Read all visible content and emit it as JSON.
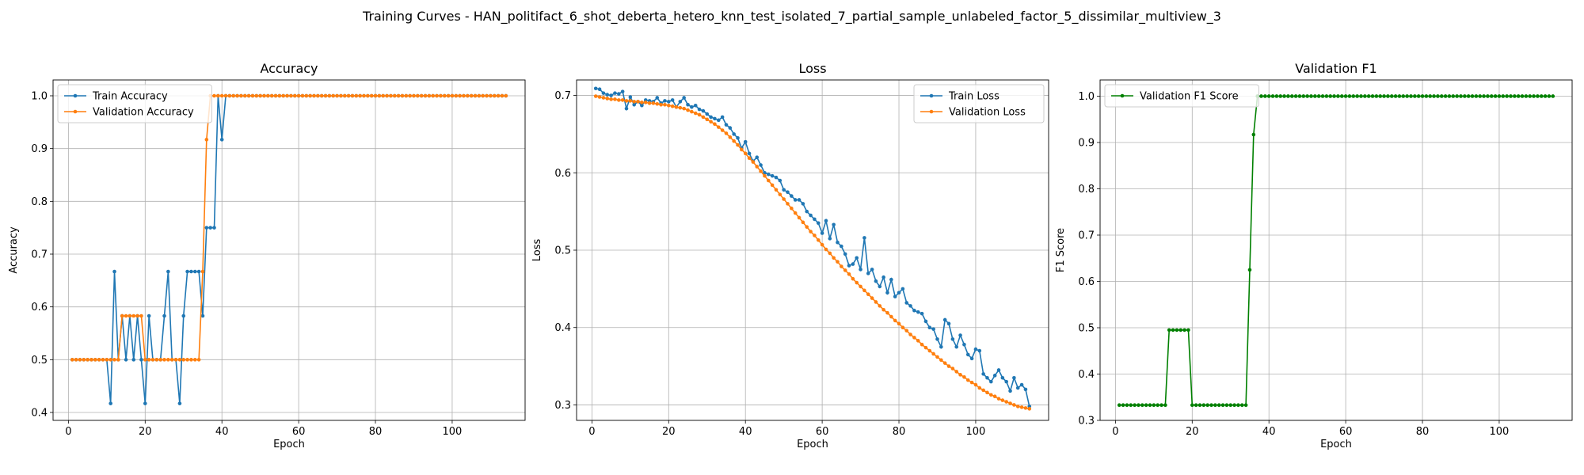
{
  "suptitle": "Training Curves - HAN_politifact_6_shot_deberta_hetero_knn_test_isolated_7_partial_sample_unlabeled_factor_5_dissimilar_multiview_3",
  "colors": {
    "train": "#1f77b4",
    "validation": "#ff7f0e",
    "f1": "#008000",
    "grid": "#b0b0b0"
  },
  "chart_data": [
    {
      "type": "line",
      "title": "Accuracy",
      "xlabel": "Epoch",
      "ylabel": "Accuracy",
      "xlim": [
        -4,
        119
      ],
      "ylim": [
        0.385,
        1.03
      ],
      "xticks": [
        0,
        20,
        40,
        60,
        80,
        100
      ],
      "yticks": [
        0.4,
        0.5,
        0.6,
        0.7,
        0.8,
        0.9,
        1.0
      ],
      "ytick_labels": [
        "0.4",
        "0.5",
        "0.6",
        "0.7",
        "0.8",
        "0.9",
        "1.0"
      ],
      "grid": true,
      "legend_position": "upper-left",
      "series": [
        {
          "name": "Train Accuracy",
          "color": "#1f77b4",
          "x_start": 1,
          "values": [
            0.5,
            0.5,
            0.5,
            0.5,
            0.5,
            0.5,
            0.5,
            0.5,
            0.5,
            0.5,
            0.417,
            0.667,
            0.5,
            0.583,
            0.5,
            0.583,
            0.5,
            0.583,
            0.5,
            0.417,
            0.583,
            0.5,
            0.5,
            0.5,
            0.583,
            0.667,
            0.5,
            0.5,
            0.417,
            0.583,
            0.667,
            0.667,
            0.667,
            0.667,
            0.583,
            0.75,
            0.75,
            0.75,
            1.0,
            0.917,
            1.0,
            1.0,
            1.0,
            1.0,
            1.0,
            1.0,
            1.0,
            1.0,
            1.0,
            1.0,
            1.0,
            1.0,
            1.0,
            1.0,
            1.0,
            1.0,
            1.0,
            1.0,
            1.0,
            1.0,
            1.0,
            1.0,
            1.0,
            1.0,
            1.0,
            1.0,
            1.0,
            1.0,
            1.0,
            1.0,
            1.0,
            1.0,
            1.0,
            1.0,
            1.0,
            1.0,
            1.0,
            1.0,
            1.0,
            1.0,
            1.0,
            1.0,
            1.0,
            1.0,
            1.0,
            1.0,
            1.0,
            1.0,
            1.0,
            1.0,
            1.0,
            1.0,
            1.0,
            1.0,
            1.0,
            1.0,
            1.0,
            1.0,
            1.0,
            1.0,
            1.0,
            1.0,
            1.0,
            1.0,
            1.0,
            1.0,
            1.0,
            1.0,
            1.0,
            1.0,
            1.0,
            1.0,
            1.0,
            1.0
          ]
        },
        {
          "name": "Validation Accuracy",
          "color": "#ff7f0e",
          "x_start": 1,
          "values": [
            0.5,
            0.5,
            0.5,
            0.5,
            0.5,
            0.5,
            0.5,
            0.5,
            0.5,
            0.5,
            0.5,
            0.5,
            0.5,
            0.583,
            0.583,
            0.583,
            0.583,
            0.583,
            0.583,
            0.5,
            0.5,
            0.5,
            0.5,
            0.5,
            0.5,
            0.5,
            0.5,
            0.5,
            0.5,
            0.5,
            0.5,
            0.5,
            0.5,
            0.5,
            0.667,
            0.917,
            1.0,
            1.0,
            1.0,
            1.0,
            1.0,
            1.0,
            1.0,
            1.0,
            1.0,
            1.0,
            1.0,
            1.0,
            1.0,
            1.0,
            1.0,
            1.0,
            1.0,
            1.0,
            1.0,
            1.0,
            1.0,
            1.0,
            1.0,
            1.0,
            1.0,
            1.0,
            1.0,
            1.0,
            1.0,
            1.0,
            1.0,
            1.0,
            1.0,
            1.0,
            1.0,
            1.0,
            1.0,
            1.0,
            1.0,
            1.0,
            1.0,
            1.0,
            1.0,
            1.0,
            1.0,
            1.0,
            1.0,
            1.0,
            1.0,
            1.0,
            1.0,
            1.0,
            1.0,
            1.0,
            1.0,
            1.0,
            1.0,
            1.0,
            1.0,
            1.0,
            1.0,
            1.0,
            1.0,
            1.0,
            1.0,
            1.0,
            1.0,
            1.0,
            1.0,
            1.0,
            1.0,
            1.0,
            1.0,
            1.0,
            1.0,
            1.0,
            1.0,
            1.0
          ]
        }
      ]
    },
    {
      "type": "line",
      "title": "Loss",
      "xlabel": "Epoch",
      "ylabel": "Loss",
      "xlim": [
        -4,
        119
      ],
      "ylim": [
        0.28,
        0.72
      ],
      "xticks": [
        0,
        20,
        40,
        60,
        80,
        100
      ],
      "yticks": [
        0.3,
        0.4,
        0.5,
        0.6,
        0.7
      ],
      "ytick_labels": [
        "0.3",
        "0.4",
        "0.5",
        "0.6",
        "0.7"
      ],
      "grid": true,
      "legend_position": "upper-right",
      "series": [
        {
          "name": "Train Loss",
          "color": "#1f77b4",
          "x_start": 1,
          "values": [
            0.709,
            0.708,
            0.703,
            0.701,
            0.7,
            0.703,
            0.702,
            0.705,
            0.683,
            0.698,
            0.688,
            0.692,
            0.687,
            0.694,
            0.693,
            0.692,
            0.697,
            0.69,
            0.693,
            0.692,
            0.694,
            0.685,
            0.692,
            0.697,
            0.688,
            0.685,
            0.687,
            0.682,
            0.68,
            0.676,
            0.672,
            0.67,
            0.668,
            0.672,
            0.662,
            0.658,
            0.65,
            0.645,
            0.632,
            0.64,
            0.625,
            0.615,
            0.62,
            0.61,
            0.6,
            0.598,
            0.596,
            0.594,
            0.59,
            0.578,
            0.575,
            0.57,
            0.565,
            0.565,
            0.56,
            0.55,
            0.545,
            0.54,
            0.535,
            0.522,
            0.538,
            0.515,
            0.533,
            0.51,
            0.505,
            0.495,
            0.48,
            0.482,
            0.49,
            0.475,
            0.516,
            0.47,
            0.475,
            0.46,
            0.453,
            0.465,
            0.445,
            0.462,
            0.44,
            0.445,
            0.45,
            0.432,
            0.428,
            0.422,
            0.42,
            0.418,
            0.408,
            0.4,
            0.398,
            0.385,
            0.375,
            0.41,
            0.405,
            0.385,
            0.375,
            0.39,
            0.378,
            0.365,
            0.36,
            0.372,
            0.37,
            0.34,
            0.335,
            0.33,
            0.338,
            0.345,
            0.335,
            0.33,
            0.318,
            0.335,
            0.322,
            0.326,
            0.32,
            0.298
          ]
        },
        {
          "name": "Validation Loss",
          "color": "#ff7f0e",
          "x_start": 1,
          "values": [
            0.699,
            0.698,
            0.697,
            0.696,
            0.695,
            0.695,
            0.694,
            0.694,
            0.693,
            0.693,
            0.692,
            0.692,
            0.691,
            0.691,
            0.69,
            0.69,
            0.689,
            0.688,
            0.688,
            0.687,
            0.686,
            0.685,
            0.684,
            0.683,
            0.681,
            0.679,
            0.677,
            0.675,
            0.672,
            0.669,
            0.666,
            0.663,
            0.659,
            0.655,
            0.651,
            0.646,
            0.641,
            0.636,
            0.63,
            0.625,
            0.619,
            0.614,
            0.608,
            0.602,
            0.596,
            0.59,
            0.584,
            0.578,
            0.572,
            0.566,
            0.56,
            0.554,
            0.548,
            0.542,
            0.536,
            0.53,
            0.524,
            0.519,
            0.513,
            0.507,
            0.501,
            0.496,
            0.49,
            0.485,
            0.479,
            0.474,
            0.469,
            0.463,
            0.458,
            0.453,
            0.448,
            0.443,
            0.438,
            0.433,
            0.428,
            0.423,
            0.419,
            0.414,
            0.409,
            0.405,
            0.4,
            0.396,
            0.391,
            0.387,
            0.383,
            0.378,
            0.374,
            0.37,
            0.366,
            0.362,
            0.358,
            0.354,
            0.35,
            0.347,
            0.343,
            0.339,
            0.336,
            0.332,
            0.329,
            0.326,
            0.322,
            0.319,
            0.316,
            0.313,
            0.311,
            0.308,
            0.306,
            0.304,
            0.302,
            0.3,
            0.298,
            0.297,
            0.296,
            0.295
          ]
        }
      ]
    },
    {
      "type": "line",
      "title": "Validation F1",
      "xlabel": "Epoch",
      "ylabel": "F1 Score",
      "xlim": [
        -4,
        119
      ],
      "ylim": [
        0.3,
        1.035
      ],
      "xticks": [
        0,
        20,
        40,
        60,
        80,
        100
      ],
      "yticks": [
        0.3,
        0.4,
        0.5,
        0.6,
        0.7,
        0.8,
        0.9,
        1.0
      ],
      "ytick_labels": [
        "0.3",
        "0.4",
        "0.5",
        "0.6",
        "0.7",
        "0.8",
        "0.9",
        "1.0"
      ],
      "grid": true,
      "legend_position": "upper-left",
      "series": [
        {
          "name": "Validation F1 Score",
          "color": "#008000",
          "x_start": 1,
          "values": [
            0.333,
            0.333,
            0.333,
            0.333,
            0.333,
            0.333,
            0.333,
            0.333,
            0.333,
            0.333,
            0.333,
            0.333,
            0.333,
            0.495,
            0.495,
            0.495,
            0.495,
            0.495,
            0.495,
            0.333,
            0.333,
            0.333,
            0.333,
            0.333,
            0.333,
            0.333,
            0.333,
            0.333,
            0.333,
            0.333,
            0.333,
            0.333,
            0.333,
            0.333,
            0.625,
            0.917,
            1.0,
            1.0,
            1.0,
            1.0,
            1.0,
            1.0,
            1.0,
            1.0,
            1.0,
            1.0,
            1.0,
            1.0,
            1.0,
            1.0,
            1.0,
            1.0,
            1.0,
            1.0,
            1.0,
            1.0,
            1.0,
            1.0,
            1.0,
            1.0,
            1.0,
            1.0,
            1.0,
            1.0,
            1.0,
            1.0,
            1.0,
            1.0,
            1.0,
            1.0,
            1.0,
            1.0,
            1.0,
            1.0,
            1.0,
            1.0,
            1.0,
            1.0,
            1.0,
            1.0,
            1.0,
            1.0,
            1.0,
            1.0,
            1.0,
            1.0,
            1.0,
            1.0,
            1.0,
            1.0,
            1.0,
            1.0,
            1.0,
            1.0,
            1.0,
            1.0,
            1.0,
            1.0,
            1.0,
            1.0,
            1.0,
            1.0,
            1.0,
            1.0,
            1.0,
            1.0,
            1.0,
            1.0,
            1.0,
            1.0,
            1.0,
            1.0,
            1.0,
            1.0
          ]
        }
      ]
    }
  ]
}
